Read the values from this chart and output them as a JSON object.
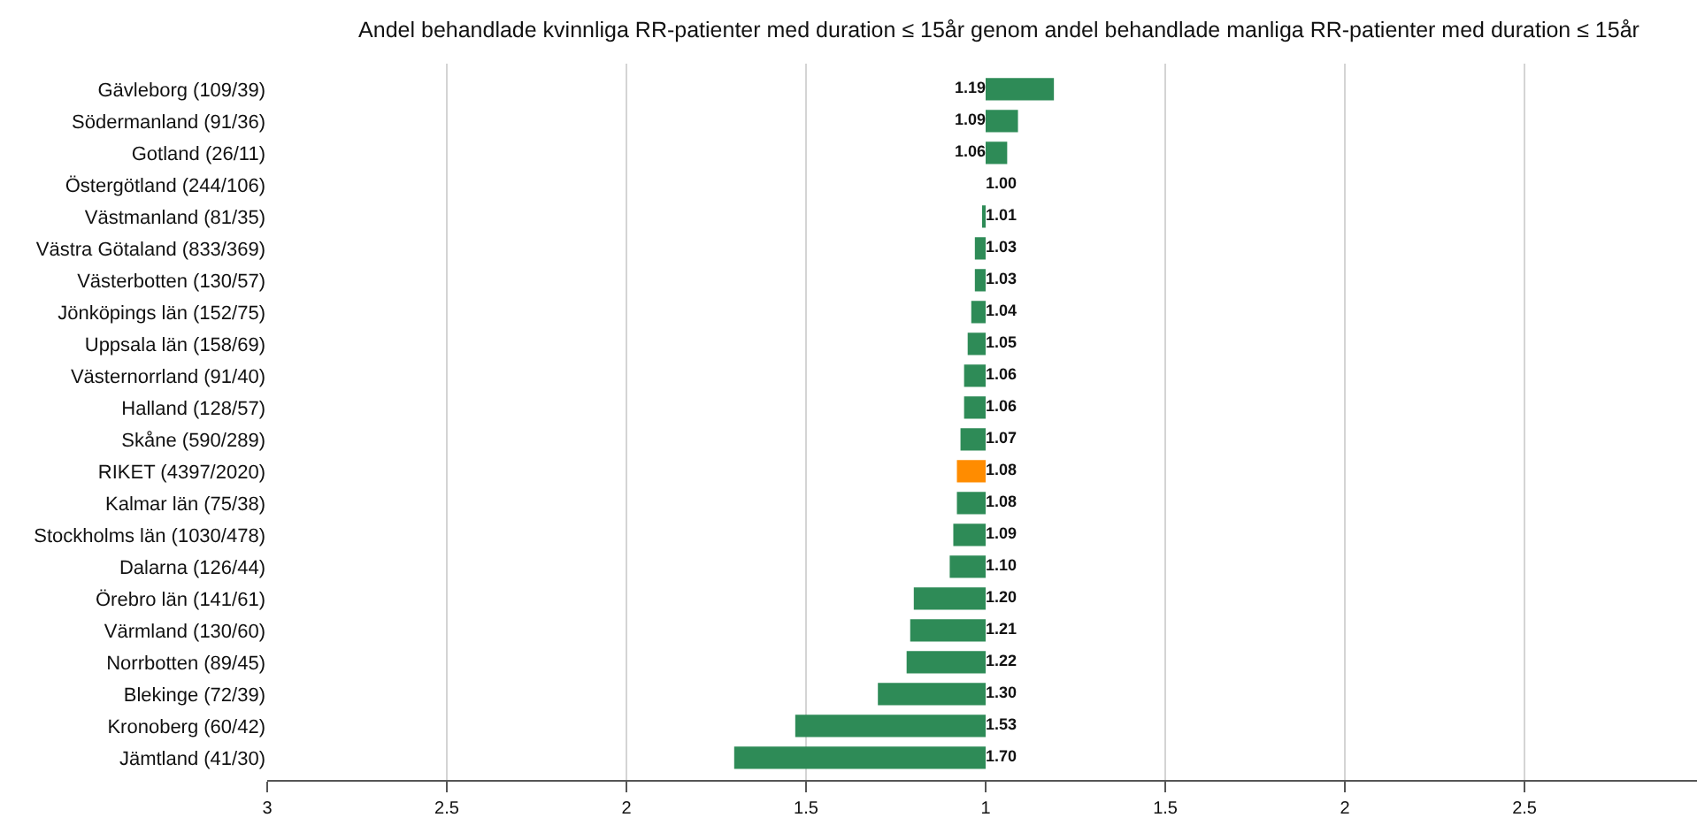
{
  "chart_data": [
    {
      "type": "bar",
      "orientation": "horizontal",
      "title": "Andel behandlade kvinnliga RR-patienter med duration ≤ 15år genom andel behandlade manliga RR-patienter med duration ≤ 15år",
      "categories": [
        "Gävleborg (109/39)",
        "Södermanland (91/36)",
        "Gotland (26/11)",
        "Östergötland (244/106)",
        "Västmanland (81/35)",
        "Västra Götaland (833/369)",
        "Västerbotten (130/57)",
        "Jönköpings län (152/75)",
        "Uppsala län (158/69)",
        "Västernorrland (91/40)",
        "Halland (128/57)",
        "Skåne (590/289)",
        "RIKET (4397/2020)",
        "Kalmar län (75/38)",
        "Stockholms län (1030/478)",
        "Dalarna (126/44)",
        "Örebro län (141/61)",
        "Värmland (130/60)",
        "Norrbotten (89/45)",
        "Blekinge (72/39)",
        "Kronoberg (60/42)",
        "Jämtland (41/30)"
      ],
      "values": [
        null,
        null,
        null,
        1.0,
        1.01,
        1.03,
        1.03,
        1.04,
        1.05,
        1.06,
        1.06,
        1.07,
        1.08,
        1.08,
        1.09,
        1.1,
        1.2,
        1.21,
        1.22,
        1.3,
        1.53,
        1.7
      ],
      "value_labels": [
        null,
        null,
        null,
        "1.00",
        "1.01",
        "1.03",
        "1.03",
        "1.04",
        "1.05",
        "1.06",
        "1.06",
        "1.07",
        "1.08",
        "1.08",
        "1.09",
        "1.10",
        "1.20",
        "1.21",
        "1.22",
        "1.30",
        "1.53",
        "1.70"
      ],
      "colors": [
        "#2e8b57",
        "#2e8b57",
        "#2e8b57",
        "#2e8b57",
        "#2e8b57",
        "#2e8b57",
        "#2e8b57",
        "#2e8b57",
        "#2e8b57",
        "#2e8b57",
        "#2e8b57",
        "#2e8b57",
        "#ff8c00",
        "#2e8b57",
        "#2e8b57",
        "#2e8b57",
        "#2e8b57",
        "#2e8b57",
        "#2e8b57",
        "#2e8b57",
        "#2e8b57",
        "#2e8b57"
      ],
      "xlim": [
        3,
        1
      ],
      "xticks": [
        3,
        2.5,
        2,
        1.5,
        1
      ],
      "grid": "x"
    },
    {
      "type": "bar",
      "orientation": "horizontal",
      "categories": [
        null,
        null,
        null,
        null,
        null,
        null,
        null,
        null,
        null,
        null,
        null,
        null,
        null,
        null,
        null,
        null,
        null,
        null,
        null,
        null,
        null,
        null
      ],
      "values": [
        1.19,
        1.09,
        1.06,
        null,
        null,
        null,
        null,
        null,
        null,
        null,
        null,
        null,
        null,
        null,
        null,
        null,
        null,
        null,
        null,
        null,
        null,
        null
      ],
      "value_labels": [
        "1.19",
        "1.09",
        "1.06",
        null,
        null,
        null,
        null,
        null,
        null,
        null,
        null,
        null,
        null,
        null,
        null,
        null,
        null,
        null,
        null,
        null,
        null,
        null
      ],
      "colors": [
        "#2e8b57",
        "#2e8b57",
        "#2e8b57",
        "#2e8b57",
        "#2e8b57",
        "#2e8b57",
        "#2e8b57",
        "#2e8b57",
        "#2e8b57",
        "#2e8b57",
        "#2e8b57",
        "#2e8b57",
        "#ff8c00",
        "#2e8b57",
        "#2e8b57",
        "#2e8b57",
        "#2e8b57",
        "#2e8b57",
        "#2e8b57",
        "#2e8b57",
        "#2e8b57",
        "#2e8b57"
      ],
      "xlim": [
        1,
        2.98
      ],
      "xticks": [
        1.5,
        2,
        2.5
      ],
      "grid": "x",
      "tick_labels": "x"
    }
  ]
}
